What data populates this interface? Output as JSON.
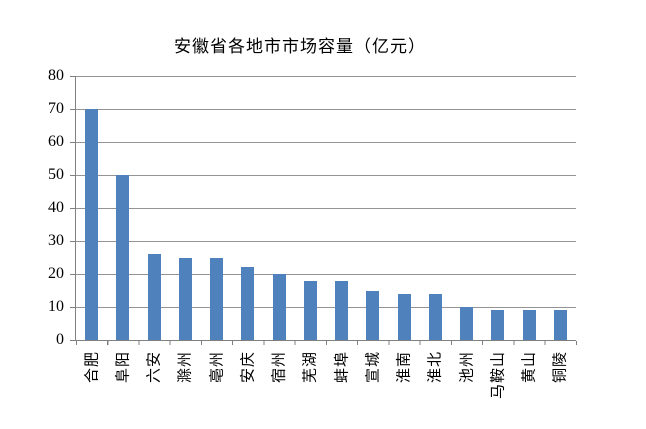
{
  "chart_data": {
    "type": "bar",
    "title": "安徽省各地市市场容量（亿元）",
    "categories": [
      "合肥",
      "阜阳",
      "六安",
      "滁州",
      "亳州",
      "安庆",
      "宿州",
      "芜湖",
      "蚌埠",
      "宣城",
      "淮南",
      "淮北",
      "池州",
      "马鞍山",
      "黄山",
      "铜陵"
    ],
    "values": [
      70,
      50,
      26,
      25,
      25,
      22,
      20,
      18,
      18,
      15,
      14,
      14,
      10,
      9,
      9,
      9
    ],
    "xlabel": "",
    "ylabel": "",
    "ylim": [
      0,
      80
    ],
    "ytick_step": 10,
    "yticks": [
      0,
      10,
      20,
      30,
      40,
      50,
      60,
      70,
      80
    ],
    "grid": "horizontal-gridlines-on",
    "legend": "none",
    "bar_color": "#4F81BD",
    "gridline_color": "#949494",
    "axis_color": "#808080",
    "text_color": "#000000",
    "background_color": "#FFFFFF"
  }
}
